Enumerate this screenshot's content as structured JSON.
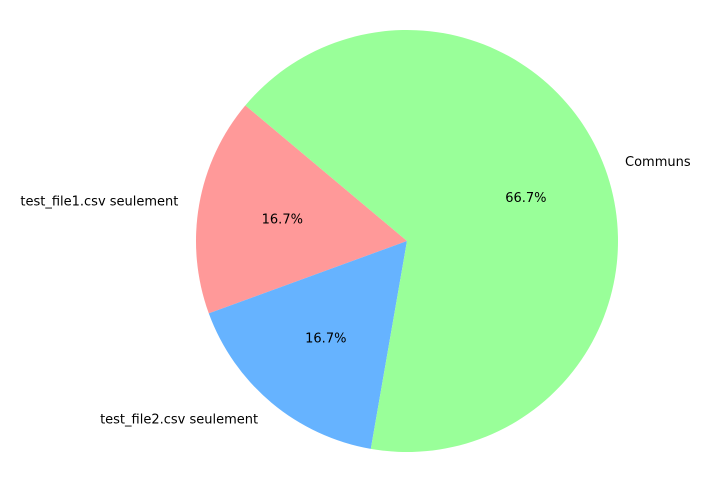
{
  "chart_data": {
    "type": "pie",
    "categories": [
      "test_file1.csv seulement",
      "test_file2.csv seulement",
      "Communs"
    ],
    "values": [
      16.7,
      16.7,
      66.7
    ],
    "percent_labels": [
      "16.7%",
      "16.7%",
      "66.7%"
    ],
    "colors": [
      "#ff9999",
      "#66b3ff",
      "#99ff99"
    ],
    "start_angle_deg": 140,
    "direction": "counterclockwise",
    "legend": "none"
  }
}
